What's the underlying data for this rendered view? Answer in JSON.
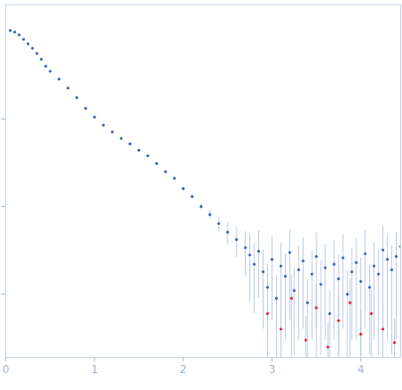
{
  "chart_data": {
    "type": "scatter",
    "log": "y",
    "grid": false,
    "tick_labels": "x",
    "marker": "circle",
    "xlim": [
      0,
      4.45
    ],
    "xticks": [
      0,
      1,
      2,
      3,
      4
    ],
    "ylim": [
      0.0019,
      20
    ],
    "yticks": [
      0.01,
      0.1,
      1
    ],
    "series": [
      {
        "color": "#3a62b8",
        "x": [
          0.05,
          0.1,
          0.15,
          0.2,
          0.25,
          0.3,
          0.35,
          0.4,
          0.45,
          0.5,
          0.6,
          0.7,
          0.8,
          0.9,
          1.0,
          1.1,
          1.2,
          1.3,
          1.4,
          1.5,
          1.6,
          1.7,
          1.8,
          1.9,
          2.0,
          2.1,
          2.2,
          2.3,
          2.4,
          2.5,
          2.6,
          2.7,
          2.75,
          2.8,
          2.85,
          2.9,
          2.95,
          3.0,
          3.05,
          3.1,
          3.15,
          3.2,
          3.25,
          3.3,
          3.35,
          3.4,
          3.45,
          3.5,
          3.55,
          3.6,
          3.65,
          3.7,
          3.75,
          3.8,
          3.85,
          3.9,
          3.95,
          4.0,
          4.05,
          4.1,
          4.15,
          4.2,
          4.25,
          4.3,
          4.35,
          4.4,
          4.45
        ],
        "values": [
          10.2,
          9.8,
          9.1,
          8.1,
          7.2,
          6.4,
          5.6,
          4.8,
          4.0,
          3.5,
          2.85,
          2.25,
          1.75,
          1.32,
          1.05,
          0.85,
          0.71,
          0.6,
          0.52,
          0.44,
          0.38,
          0.31,
          0.25,
          0.21,
          0.16,
          0.13,
          0.1,
          0.081,
          0.064,
          0.051,
          0.042,
          0.034,
          0.028,
          0.022,
          0.031,
          0.018,
          0.012,
          0.025,
          0.009,
          0.021,
          0.016,
          0.03,
          0.011,
          0.019,
          0.024,
          0.008,
          0.017,
          0.027,
          0.013,
          0.02,
          0.006,
          0.022,
          0.015,
          0.026,
          0.01,
          0.018,
          0.023,
          0.014,
          0.029,
          0.012,
          0.021,
          0.017,
          0.032,
          0.025,
          0.019,
          0.027,
          0.035
        ],
        "errors": [
          0.1,
          0.1,
          0.09,
          0.08,
          0.07,
          0.06,
          0.055,
          0.05,
          0.04,
          0.035,
          0.03,
          0.025,
          0.02,
          0.017,
          0.014,
          0.012,
          0.011,
          0.01,
          0.009,
          0.008,
          0.008,
          0.008,
          0.008,
          0.008,
          0.008,
          0.008,
          0.008,
          0.01,
          0.012,
          0.014,
          0.016,
          0.018,
          0.02,
          0.016,
          0.022,
          0.014,
          0.01,
          0.02,
          0.0075,
          0.017,
          0.013,
          0.025,
          0.009,
          0.016,
          0.02,
          0.0068,
          0.014,
          0.023,
          0.011,
          0.017,
          0.005,
          0.019,
          0.013,
          0.022,
          0.0085,
          0.015,
          0.02,
          0.012,
          0.025,
          0.01,
          0.018,
          0.015,
          0.028,
          0.022,
          0.017,
          0.024,
          0.031
        ]
      },
      {
        "color": "#e8202a",
        "x": [
          2.95,
          3.1,
          3.22,
          3.38,
          3.5,
          3.63,
          3.75,
          3.88,
          4.0,
          4.12,
          4.25,
          4.38
        ],
        "values": [
          0.006,
          0.004,
          0.009,
          0.003,
          0.007,
          0.0025,
          0.005,
          0.008,
          0.0035,
          0.006,
          0.004,
          0.0028
        ],
        "errors": [
          0.005,
          0.0035,
          0.0075,
          0.0026,
          0.006,
          0.0022,
          0.0043,
          0.0068,
          0.003,
          0.005,
          0.0034,
          0.0024
        ]
      }
    ]
  }
}
